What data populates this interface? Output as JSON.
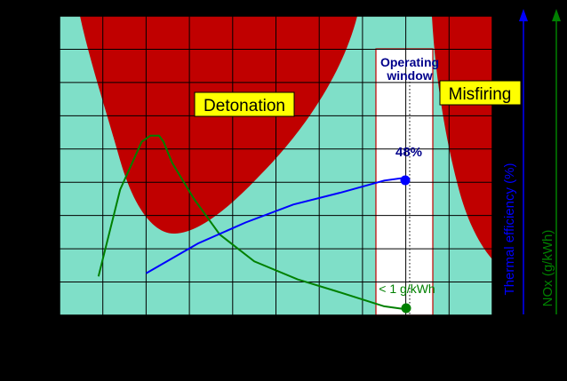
{
  "chart_data": {
    "type": "line",
    "title": "",
    "xlabel": "",
    "x_range": [
      0,
      100
    ],
    "y_range": [
      0,
      100
    ],
    "grid": true,
    "regions": [
      {
        "name": "Detonation",
        "color": "#c00000"
      },
      {
        "name": "Misfiring",
        "color": "#c00000"
      },
      {
        "name": "Operating window",
        "color": "#ffffff"
      }
    ],
    "region_labels": {
      "detonation": "Detonation",
      "misfiring": "Misfiring",
      "operating_window_line1": "Operating",
      "operating_window_line2": "window"
    },
    "series": [
      {
        "name": "Thermal efficiency (%)",
        "color": "#0000ff",
        "x": [
          20,
          32,
          43,
          54,
          65,
          75,
          80
        ],
        "y": [
          14,
          24,
          31,
          37,
          41,
          45,
          46
        ]
      },
      {
        "name": "NOx (g/kWh)",
        "color": "#008000",
        "x": [
          9,
          14,
          19,
          21,
          23,
          24,
          26,
          31,
          37,
          45,
          55,
          64,
          75,
          80
        ],
        "y": [
          13,
          42,
          58,
          60,
          60,
          58,
          51,
          39,
          27,
          18,
          12,
          8,
          3,
          2
        ]
      }
    ],
    "annotations": {
      "efficiency_value": "48%",
      "nox_value": "< 1 g/kWh"
    },
    "right_axes": [
      {
        "label": "Thermal efficiency (%)",
        "color": "#0000ff"
      },
      {
        "label": "NOx (g/kWh)",
        "color": "#008000"
      }
    ],
    "colors": {
      "background": "#7fdfc8",
      "region": "#c00000",
      "label_box": "#ffff00",
      "grid": "#000000"
    }
  }
}
